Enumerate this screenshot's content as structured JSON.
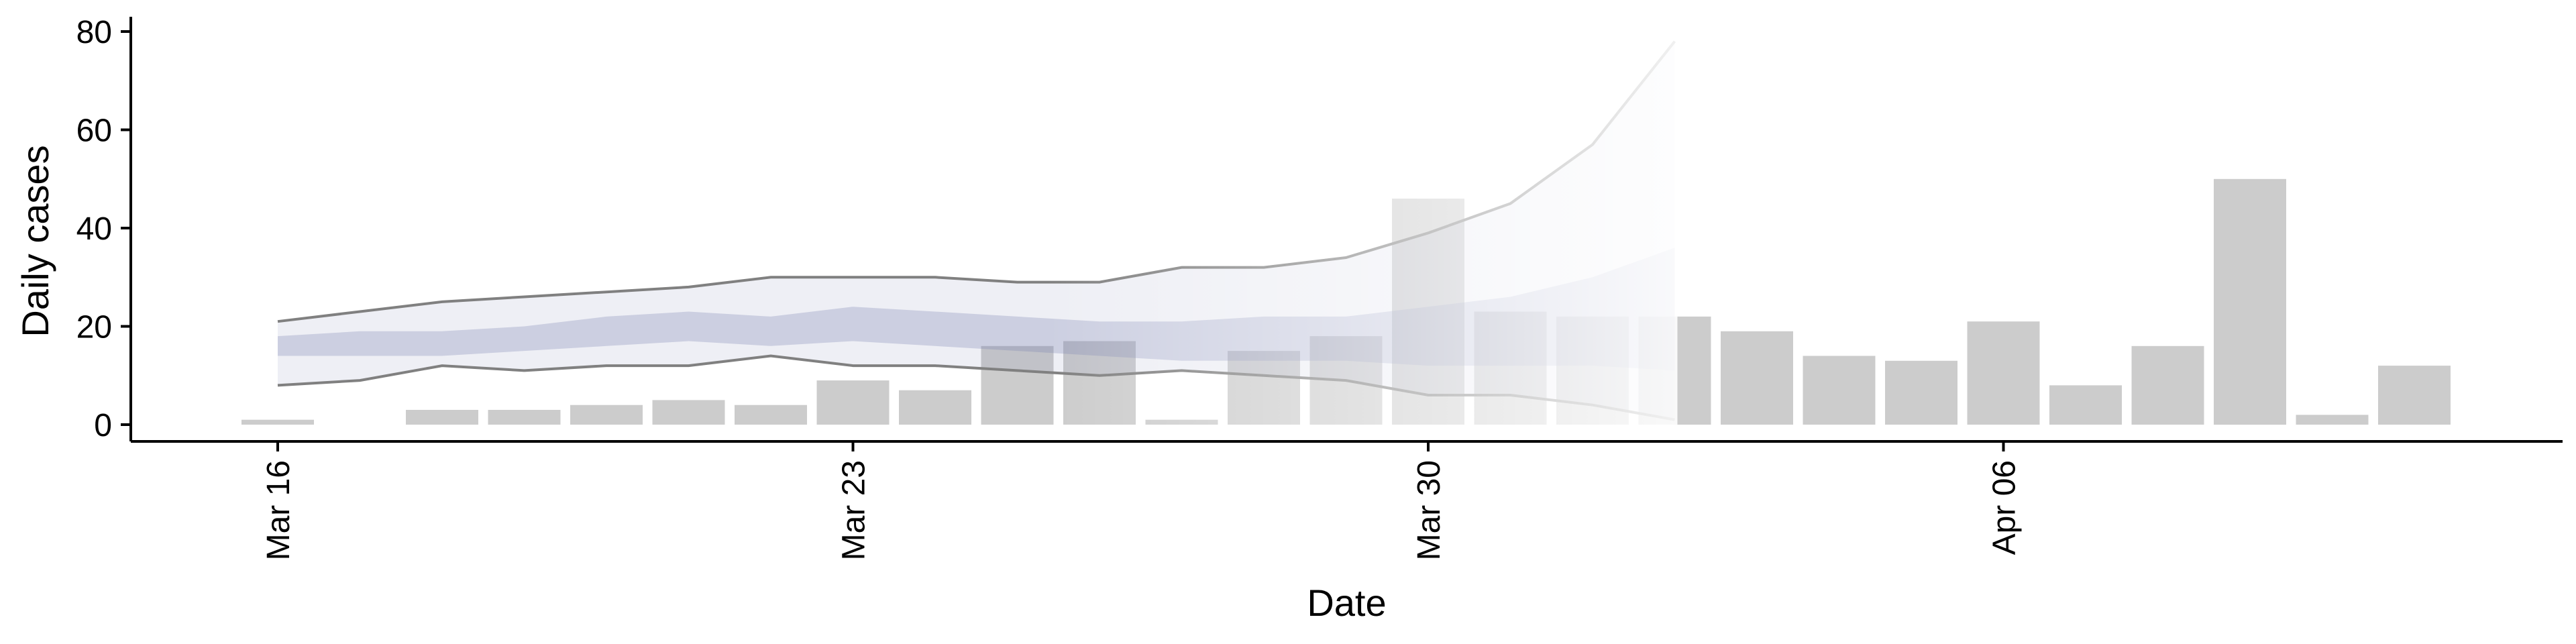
{
  "chart_data": {
    "type": "bar",
    "title": "",
    "xlabel": "Date",
    "ylabel": "Daily cases",
    "ylim": [
      0,
      80
    ],
    "yticks": [
      0,
      20,
      40,
      60,
      80
    ],
    "xticks": [
      {
        "date": "2020-03-16",
        "label": "Mar 16"
      },
      {
        "date": "2020-03-23",
        "label": "Mar 23"
      },
      {
        "date": "2020-03-30",
        "label": "Mar 30"
      },
      {
        "date": "2020-04-06",
        "label": "Apr 06"
      }
    ],
    "grid": false,
    "legend": "none",
    "colors": {
      "bars": "#cccccc",
      "band": "#7f86b4",
      "band_line": "#808080",
      "axis": "#000000"
    },
    "bars": {
      "dates": [
        "2020-03-16",
        "2020-03-17",
        "2020-03-18",
        "2020-03-19",
        "2020-03-20",
        "2020-03-21",
        "2020-03-22",
        "2020-03-23",
        "2020-03-24",
        "2020-03-25",
        "2020-03-26",
        "2020-03-27",
        "2020-03-28",
        "2020-03-29",
        "2020-03-30",
        "2020-03-31",
        "2020-04-01",
        "2020-04-02",
        "2020-04-03",
        "2020-04-04",
        "2020-04-05",
        "2020-04-06",
        "2020-04-07",
        "2020-04-08",
        "2020-04-09",
        "2020-04-10",
        "2020-04-11"
      ],
      "values": [
        1,
        0,
        3,
        3,
        4,
        5,
        4,
        9,
        7,
        16,
        17,
        1,
        15,
        18,
        46,
        23,
        22,
        22,
        19,
        14,
        13,
        21,
        8,
        16,
        50,
        2,
        12
      ]
    },
    "estimate": {
      "dates": [
        "2020-03-16",
        "2020-03-17",
        "2020-03-18",
        "2020-03-19",
        "2020-03-20",
        "2020-03-21",
        "2020-03-22",
        "2020-03-23",
        "2020-03-24",
        "2020-03-25",
        "2020-03-26",
        "2020-03-27",
        "2020-03-28",
        "2020-03-29",
        "2020-03-30",
        "2020-03-31",
        "2020-04-01",
        "2020-04-02"
      ],
      "upper90": [
        21,
        23,
        25,
        26,
        27,
        28,
        30,
        30,
        30,
        29,
        29,
        32,
        32,
        34,
        39,
        45,
        57,
        78
      ],
      "upper50": [
        18,
        19,
        19,
        20,
        22,
        23,
        22,
        24,
        23,
        22,
        21,
        21,
        22,
        22,
        24,
        26,
        30,
        36
      ],
      "lower50": [
        14,
        14,
        14,
        15,
        16,
        17,
        16,
        17,
        16,
        15,
        14,
        13,
        13,
        13,
        12,
        12,
        12,
        11
      ],
      "lower90": [
        8,
        9,
        12,
        11,
        12,
        12,
        14,
        12,
        12,
        11,
        10,
        11,
        10,
        9,
        6,
        6,
        4,
        1
      ]
    }
  }
}
